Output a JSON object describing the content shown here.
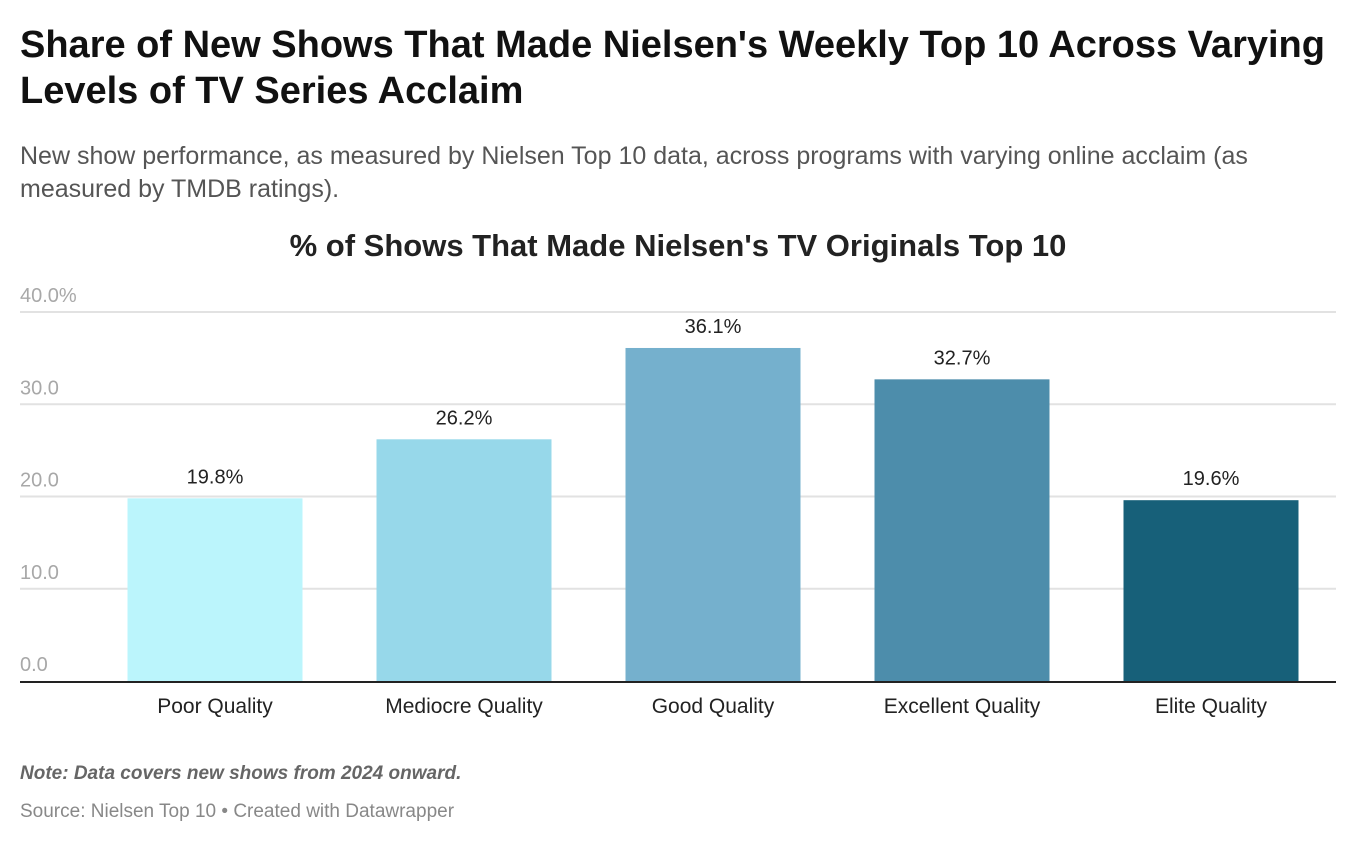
{
  "title": "Share of New Shows That Made Nielsen's Weekly Top 10 Across Varying Levels of TV Series Acclaim",
  "subtitle": "New show performance, as measured by Nielsen Top 10 data, across programs with varying online acclaim (as measured by TMDB ratings).",
  "note": "Note: Data covers new shows from 2024 onward.",
  "source": "Source: Nielsen Top 10 • Created with Datawrapper",
  "chart_data": {
    "type": "bar",
    "title": "% of Shows That Made Nielsen's TV Originals Top 10",
    "categories": [
      "Poor Quality",
      "Mediocre Quality",
      "Good Quality",
      "Excellent Quality",
      "Elite Quality"
    ],
    "values": [
      19.8,
      26.2,
      36.1,
      32.7,
      19.6
    ],
    "value_labels": [
      "19.8%",
      "26.2%",
      "36.1%",
      "32.7%",
      "19.6%"
    ],
    "colors": [
      "#bbf5fc",
      "#97d8ea",
      "#75b0cd",
      "#4d8dab",
      "#176079"
    ],
    "ylim": [
      0,
      40
    ],
    "yticks": [
      0,
      10,
      20,
      30,
      40
    ],
    "ytick_labels": [
      "0.0",
      "10.0",
      "20.0",
      "30.0",
      "40.0%"
    ],
    "xlabel": "",
    "ylabel": "",
    "grid": true
  }
}
